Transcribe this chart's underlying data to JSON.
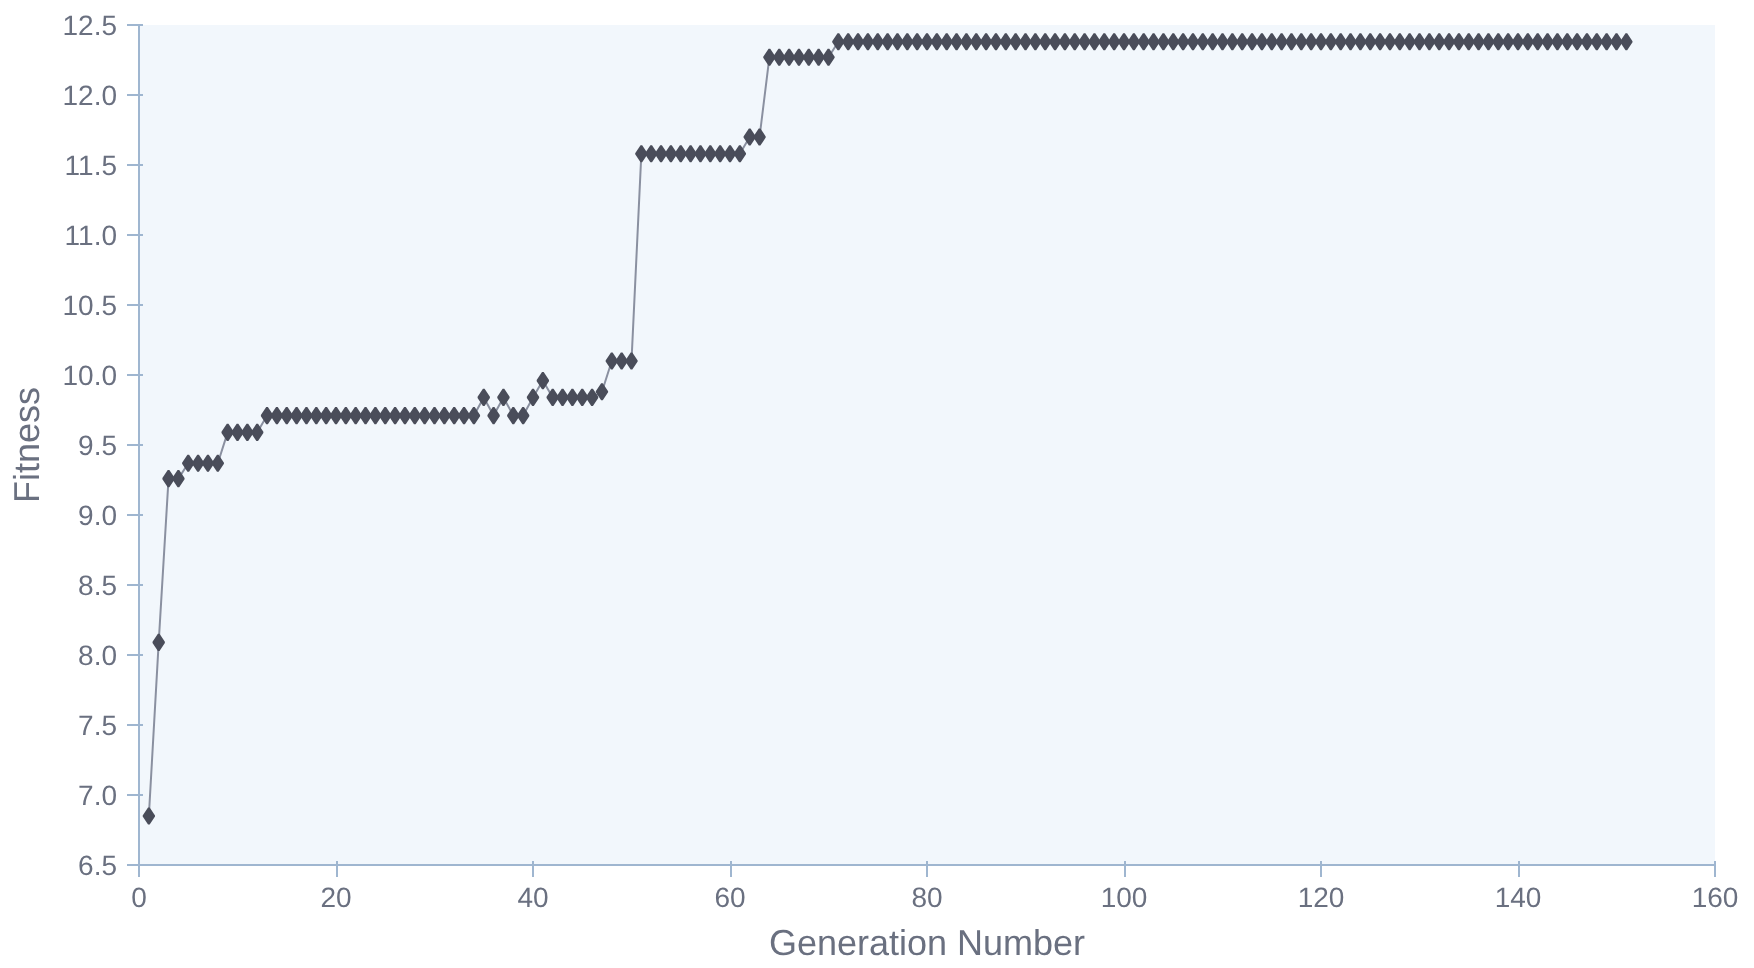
{
  "chart_data": {
    "type": "line",
    "xlabel": "Generation Number",
    "ylabel": "Fitness",
    "x": [
      1,
      2,
      3,
      4,
      5,
      6,
      7,
      8,
      9,
      10,
      11,
      12,
      13,
      14,
      15,
      16,
      17,
      18,
      19,
      20,
      21,
      22,
      23,
      24,
      25,
      26,
      27,
      28,
      29,
      30,
      31,
      32,
      33,
      34,
      35,
      36,
      37,
      38,
      39,
      40,
      41,
      42,
      43,
      44,
      45,
      46,
      47,
      48,
      49,
      50,
      51,
      52,
      53,
      54,
      55,
      56,
      57,
      58,
      59,
      60,
      61,
      62,
      63,
      64,
      65,
      66,
      67,
      68,
      69,
      70,
      71,
      72,
      73,
      74,
      75,
      76,
      77,
      78,
      79,
      80,
      81,
      82,
      83,
      84,
      85,
      86,
      87,
      88,
      89,
      90,
      91,
      92,
      93,
      94,
      95,
      96,
      97,
      98,
      99,
      100,
      101,
      102,
      103,
      104,
      105,
      106,
      107,
      108,
      109,
      110,
      111,
      112,
      113,
      114,
      115,
      116,
      117,
      118,
      119,
      120,
      121,
      122,
      123,
      124,
      125,
      126,
      127,
      128,
      129,
      130,
      131,
      132,
      133,
      134,
      135,
      136,
      137,
      138,
      139,
      140,
      141,
      142,
      143,
      144,
      145,
      146,
      147,
      148,
      149,
      150,
      151
    ],
    "series": [
      {
        "color": "#4a4d5a",
        "values": [
          6.85,
          8.09,
          9.26,
          9.26,
          9.37,
          9.37,
          9.37,
          9.37,
          9.59,
          9.59,
          9.59,
          9.59,
          9.71,
          9.71,
          9.71,
          9.71,
          9.71,
          9.71,
          9.71,
          9.71,
          9.71,
          9.71,
          9.71,
          9.71,
          9.71,
          9.71,
          9.71,
          9.71,
          9.71,
          9.71,
          9.71,
          9.71,
          9.71,
          9.71,
          9.84,
          9.71,
          9.84,
          9.71,
          9.71,
          9.84,
          9.96,
          9.84,
          9.84,
          9.84,
          9.84,
          9.84,
          9.88,
          10.1,
          10.1,
          10.1,
          11.58,
          11.58,
          11.58,
          11.58,
          11.58,
          11.58,
          11.58,
          11.58,
          11.58,
          11.58,
          11.58,
          11.7,
          11.7,
          12.27,
          12.27,
          12.27,
          12.27,
          12.27,
          12.27,
          12.27,
          12.38,
          12.38,
          12.38,
          12.38,
          12.38,
          12.38,
          12.38,
          12.38,
          12.38,
          12.38,
          12.38,
          12.38,
          12.38,
          12.38,
          12.38,
          12.38,
          12.38,
          12.38,
          12.38,
          12.38,
          12.38,
          12.38,
          12.38,
          12.38,
          12.38,
          12.38,
          12.38,
          12.38,
          12.38,
          12.38,
          12.38,
          12.38,
          12.38,
          12.38,
          12.38,
          12.38,
          12.38,
          12.38,
          12.38,
          12.38,
          12.38,
          12.38,
          12.38,
          12.38,
          12.38,
          12.38,
          12.38,
          12.38,
          12.38,
          12.38,
          12.38,
          12.38,
          12.38,
          12.38,
          12.38,
          12.38,
          12.38,
          12.38,
          12.38,
          12.38,
          12.38,
          12.38,
          12.38,
          12.38,
          12.38,
          12.38,
          12.38,
          12.38,
          12.38,
          12.38,
          12.38,
          12.38,
          12.38,
          12.38,
          12.38,
          12.38,
          12.38,
          12.38,
          12.38,
          12.38,
          12.38
        ]
      }
    ],
    "xlim": [
      0,
      160
    ],
    "xticks": [
      0,
      20,
      40,
      60,
      80,
      100,
      120,
      140,
      160
    ],
    "ylim": [
      6.5,
      12.5
    ],
    "yticks": [
      {
        "value": 6.5,
        "label": "6.5"
      },
      {
        "value": 7,
        "label": "7.0"
      },
      {
        "value": 7.5,
        "label": "7.5"
      },
      {
        "value": 8,
        "label": "8.0"
      },
      {
        "value": 8.5,
        "label": "8.5"
      },
      {
        "value": 9,
        "label": "9.0"
      },
      {
        "value": 9.5,
        "label": "9.5"
      },
      {
        "value": 10,
        "label": "10.0"
      },
      {
        "value": 10.5,
        "label": "10.5"
      },
      {
        "value": 11,
        "label": "11.0"
      },
      {
        "value": 11.5,
        "label": "11.5"
      },
      {
        "value": 12,
        "label": "12.0"
      },
      {
        "value": 12.5,
        "label": "12.5"
      }
    ],
    "marker": "diamond",
    "line_style": "solid",
    "grid": false
  }
}
